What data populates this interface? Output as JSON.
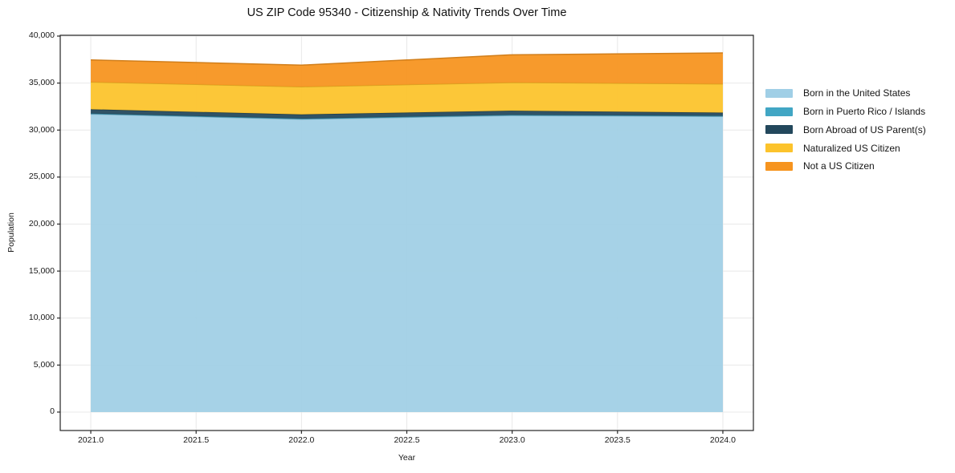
{
  "title": "US ZIP Code 95340 - Citizenship & Nativity Trends Over Time",
  "chart_data": {
    "type": "area",
    "stacked": true,
    "title": "US ZIP Code 95340 - Citizenship & Nativity Trends Over Time",
    "xlabel": "Year",
    "ylabel": "Population",
    "x": [
      2021,
      2022,
      2023,
      2024
    ],
    "series": [
      {
        "name": "Born in the United States",
        "color": "#A0CFE6",
        "values": [
          31700,
          31150,
          31550,
          31450
        ]
      },
      {
        "name": "Born in Puerto Rico / Islands",
        "color": "#41A6C4",
        "values": [
          60,
          60,
          60,
          60
        ]
      },
      {
        "name": "Born Abroad of US Parent(s)",
        "color": "#23485C",
        "values": [
          450,
          450,
          450,
          350
        ]
      },
      {
        "name": "Naturalized US Citizen",
        "color": "#FCC32C",
        "values": [
          2900,
          2950,
          3000,
          3050
        ]
      },
      {
        "name": "Not a US Citizen",
        "color": "#F6941F",
        "values": [
          2350,
          2300,
          2950,
          3300
        ]
      }
    ],
    "stacked_totals": [
      37460,
      36910,
      38010,
      38210
    ],
    "xlim": [
      2020.855,
      2024.145
    ],
    "ylim": [
      -1962,
      40085
    ],
    "xticks": [
      2021.0,
      2021.5,
      2022.0,
      2022.5,
      2023.0,
      2023.5,
      2024.0
    ],
    "xtick_labels": [
      "2021.0",
      "2021.5",
      "2022.0",
      "2022.5",
      "2023.0",
      "2023.5",
      "2024.0"
    ],
    "yticks": [
      0,
      5000,
      10000,
      15000,
      20000,
      25000,
      30000,
      35000,
      40000
    ],
    "ytick_labels": [
      "0",
      "5,000",
      "10,000",
      "15,000",
      "20,000",
      "25,000",
      "30,000",
      "35,000",
      "40,000"
    ],
    "grid": true,
    "grid_color": "#e8e8e8",
    "spine_color": "#262626",
    "legend_position": "right-outside",
    "legend_frame": false
  }
}
